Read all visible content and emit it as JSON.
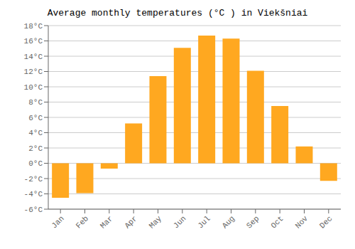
{
  "chart_data": {
    "type": "bar",
    "title": "Average monthly temperatures (°C ) in Viekšniai",
    "categories": [
      "Jan",
      "Feb",
      "Mar",
      "Apr",
      "May",
      "Jun",
      "Jul",
      "Aug",
      "Sep",
      "Oct",
      "Nov",
      "Dec"
    ],
    "values": [
      -4.5,
      -3.9,
      -0.7,
      5.2,
      11.4,
      15.1,
      16.7,
      16.3,
      12.1,
      7.5,
      2.2,
      -2.3
    ],
    "color": "#FFA820",
    "ylim": [
      -6,
      18
    ],
    "yticks": [
      {
        "value": -6,
        "label": "-6°C"
      },
      {
        "value": -4,
        "label": "-4°C"
      },
      {
        "value": -2,
        "label": "-2°C"
      },
      {
        "value": 0,
        "label": "0°C"
      },
      {
        "value": 2,
        "label": "2°C"
      },
      {
        "value": 4,
        "label": "4°C"
      },
      {
        "value": 6,
        "label": "6°C"
      },
      {
        "value": 8,
        "label": "8°C"
      },
      {
        "value": 10,
        "label": "10°C"
      },
      {
        "value": 12,
        "label": "12°C"
      },
      {
        "value": 14,
        "label": "14°C"
      },
      {
        "value": 16,
        "label": "16°C"
      },
      {
        "value": 18,
        "label": "18°C"
      }
    ],
    "grid": true
  }
}
